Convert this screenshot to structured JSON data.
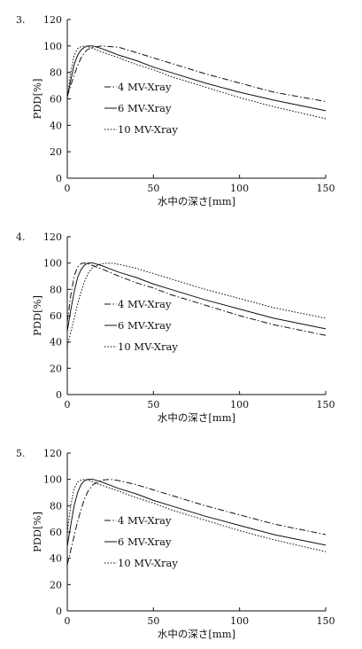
{
  "chart_data": [
    {
      "type": "line",
      "panel_label": "3.",
      "xlabel": "水中の深さ[mm]",
      "ylabel": "PDD[%]",
      "xlim": [
        0,
        150
      ],
      "ylim": [
        0,
        120
      ],
      "xticks": [
        0,
        50,
        100,
        150
      ],
      "yticks": [
        0,
        20,
        40,
        60,
        80,
        100,
        120
      ],
      "grid": false,
      "legend_position": "center-left",
      "series": [
        {
          "name": "4 MV-Xray",
          "style": "dashdot",
          "x": [
            0,
            2,
            4,
            6,
            8,
            10,
            12,
            15,
            20,
            30,
            40,
            50,
            60,
            80,
            100,
            120,
            150
          ],
          "y": [
            62,
            70,
            78,
            85,
            91,
            95,
            97.5,
            99,
            100,
            99,
            95,
            91,
            87,
            79,
            72,
            65,
            58
          ]
        },
        {
          "name": "6 MV-Xray",
          "style": "solid",
          "x": [
            0,
            2,
            4,
            6,
            8,
            10,
            12,
            15,
            20,
            30,
            40,
            50,
            60,
            80,
            100,
            120,
            150
          ],
          "y": [
            61,
            74,
            86,
            93,
            97,
            99,
            100,
            100,
            98,
            93,
            89,
            84,
            80,
            72,
            65,
            59,
            51
          ]
        },
        {
          "name": "10 MV-Xray",
          "style": "dotted",
          "x": [
            0,
            2,
            4,
            6,
            8,
            10,
            12,
            15,
            20,
            30,
            40,
            50,
            60,
            80,
            100,
            120,
            150
          ],
          "y": [
            60,
            80,
            93,
            98,
            99.5,
            100,
            99.5,
            98,
            95.5,
            91,
            86,
            82,
            77,
            69,
            61,
            54,
            45
          ]
        }
      ]
    },
    {
      "type": "line",
      "panel_label": "4.",
      "xlabel": "水中の深さ[mm]",
      "ylabel": "PDD[%]",
      "xlim": [
        0,
        150
      ],
      "ylim": [
        0,
        120
      ],
      "xticks": [
        0,
        50,
        100,
        150
      ],
      "yticks": [
        0,
        20,
        40,
        60,
        80,
        100,
        120
      ],
      "grid": false,
      "legend_position": "center-left",
      "series": [
        {
          "name": "4 MV-Xray",
          "style": "dashdot",
          "x": [
            0,
            2,
            4,
            6,
            8,
            10,
            12,
            15,
            20,
            30,
            40,
            50,
            60,
            80,
            100,
            120,
            150
          ],
          "y": [
            55,
            75,
            90,
            97,
            99.5,
            100,
            99.5,
            98,
            95.5,
            90,
            85,
            81,
            76,
            68,
            60,
            53,
            45
          ]
        },
        {
          "name": "6 MV-Xray",
          "style": "solid",
          "x": [
            0,
            2,
            4,
            6,
            8,
            10,
            12,
            15,
            20,
            30,
            40,
            50,
            60,
            80,
            100,
            120,
            150
          ],
          "y": [
            48,
            64,
            78,
            89,
            95,
            98.5,
            100,
            100,
            98,
            93,
            89,
            84,
            80,
            72,
            65,
            58,
            50
          ]
        },
        {
          "name": "10 MV-Xray",
          "style": "dotted",
          "x": [
            0,
            2,
            4,
            6,
            8,
            10,
            12,
            15,
            20,
            25,
            30,
            40,
            50,
            60,
            80,
            100,
            120,
            150
          ],
          "y": [
            37,
            47,
            58,
            69,
            78,
            86,
            92,
            97,
            99.5,
            100,
            99,
            96,
            92,
            88,
            80,
            73,
            66,
            58
          ]
        }
      ]
    },
    {
      "type": "line",
      "panel_label": "5.",
      "xlabel": "水中の深さ[mm]",
      "ylabel": "PDD[%]",
      "xlim": [
        0,
        150
      ],
      "ylim": [
        0,
        120
      ],
      "xticks": [
        0,
        50,
        100,
        150
      ],
      "yticks": [
        0,
        20,
        40,
        60,
        80,
        100,
        120
      ],
      "grid": false,
      "legend_position": "center-left",
      "series": [
        {
          "name": "4 MV-Xray",
          "style": "dashdot",
          "x": [
            0,
            2,
            4,
            6,
            8,
            10,
            12,
            15,
            20,
            25,
            30,
            40,
            50,
            60,
            80,
            100,
            120,
            150
          ],
          "y": [
            35,
            46,
            57,
            68,
            77,
            85,
            91,
            96,
            99.5,
            100,
            99,
            96,
            92,
            88,
            80,
            73,
            66,
            58
          ]
        },
        {
          "name": "6 MV-Xray",
          "style": "solid",
          "x": [
            0,
            2,
            4,
            6,
            8,
            10,
            12,
            15,
            20,
            30,
            40,
            50,
            60,
            80,
            100,
            120,
            150
          ],
          "y": [
            49,
            65,
            80,
            90,
            96,
            99,
            100,
            100,
            98,
            93,
            89,
            84,
            80,
            72,
            65,
            58,
            50
          ]
        },
        {
          "name": "10 MV-Xray",
          "style": "dotted",
          "x": [
            0,
            2,
            4,
            6,
            8,
            10,
            12,
            15,
            20,
            30,
            40,
            50,
            60,
            80,
            100,
            120,
            150
          ],
          "y": [
            60,
            80,
            93,
            98,
            99.5,
            100,
            99.5,
            98,
            95.5,
            91,
            86,
            82,
            77,
            69,
            61,
            54,
            45
          ]
        }
      ]
    }
  ]
}
